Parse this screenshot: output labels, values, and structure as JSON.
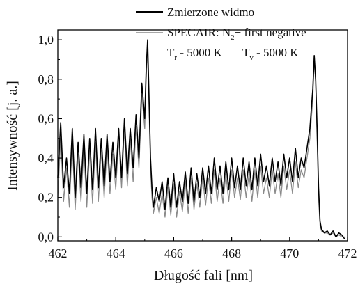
{
  "chart_data": {
    "type": "line",
    "xlabel": "Długość fali [nm]",
    "ylabel": "Intensywność [j. a.]",
    "xlim": [
      462,
      472
    ],
    "ylim": [
      -0.02,
      1.05
    ],
    "xticks": [
      "462",
      "464",
      "466",
      "468",
      "470",
      "472"
    ],
    "yticks": [
      "0,0",
      "0,2",
      "0,4",
      "0,6",
      "0,8",
      "1,0"
    ],
    "legend": {
      "position": "top-right",
      "entries": [
        {
          "label": "Zmierzone widmo"
        },
        {
          "label_prefix": "SPECAIR: N",
          "label_sub": "2",
          "label_suffix": "+ first negative"
        }
      ]
    },
    "annotation": {
      "tr_main": "T",
      "tr_sub": "r",
      "tr_value": " - 5000 K",
      "tv_main": "T",
      "tv_sub": "v",
      "tv_value": " - 5000 K"
    },
    "series": [
      {
        "name": "Zmierzone widmo",
        "color": "#000000",
        "x": [
          462.0,
          462.1,
          462.2,
          462.3,
          462.4,
          462.5,
          462.6,
          462.7,
          462.8,
          462.9,
          463.0,
          463.1,
          463.2,
          463.3,
          463.4,
          463.5,
          463.6,
          463.7,
          463.8,
          463.9,
          464.0,
          464.1,
          464.2,
          464.3,
          464.4,
          464.5,
          464.6,
          464.7,
          464.8,
          464.9,
          465.0,
          465.05,
          465.1,
          465.15,
          465.2,
          465.25,
          465.3,
          465.4,
          465.5,
          465.6,
          465.7,
          465.8,
          465.9,
          466.0,
          466.1,
          466.2,
          466.3,
          466.4,
          466.5,
          466.6,
          466.7,
          466.8,
          466.9,
          467.0,
          467.1,
          467.2,
          467.3,
          467.4,
          467.5,
          467.6,
          467.7,
          467.8,
          467.9,
          468.0,
          468.1,
          468.2,
          468.3,
          468.4,
          468.5,
          468.6,
          468.7,
          468.8,
          468.9,
          469.0,
          469.1,
          469.2,
          469.3,
          469.4,
          469.5,
          469.6,
          469.7,
          469.8,
          469.9,
          470.0,
          470.1,
          470.2,
          470.3,
          470.4,
          470.5,
          470.6,
          470.7,
          470.8,
          470.85,
          470.9,
          470.95,
          471.0,
          471.05,
          471.1,
          471.2,
          471.3,
          471.4,
          471.5,
          471.6,
          471.7,
          471.8,
          471.9
        ],
        "y": [
          0.3,
          0.58,
          0.25,
          0.4,
          0.22,
          0.55,
          0.2,
          0.48,
          0.25,
          0.52,
          0.22,
          0.5,
          0.24,
          0.55,
          0.25,
          0.5,
          0.26,
          0.52,
          0.28,
          0.48,
          0.3,
          0.55,
          0.3,
          0.6,
          0.32,
          0.55,
          0.35,
          0.62,
          0.4,
          0.78,
          0.6,
          0.85,
          1.0,
          0.7,
          0.4,
          0.25,
          0.15,
          0.25,
          0.18,
          0.28,
          0.14,
          0.3,
          0.15,
          0.32,
          0.15,
          0.28,
          0.18,
          0.33,
          0.17,
          0.35,
          0.18,
          0.32,
          0.2,
          0.35,
          0.22,
          0.36,
          0.22,
          0.4,
          0.24,
          0.36,
          0.22,
          0.38,
          0.24,
          0.4,
          0.25,
          0.36,
          0.24,
          0.4,
          0.26,
          0.38,
          0.24,
          0.4,
          0.26,
          0.42,
          0.28,
          0.36,
          0.26,
          0.4,
          0.28,
          0.38,
          0.26,
          0.42,
          0.3,
          0.4,
          0.28,
          0.45,
          0.3,
          0.4,
          0.35,
          0.45,
          0.55,
          0.75,
          0.92,
          0.8,
          0.55,
          0.25,
          0.08,
          0.04,
          0.02,
          0.03,
          0.01,
          0.03,
          0.0,
          0.02,
          0.01,
          -0.01
        ]
      },
      {
        "name_prefix": "SPECAIR: N",
        "name_sub": "2",
        "name_suffix": "+ first negative",
        "color": "#8a8a8a",
        "x": [
          462.0,
          462.1,
          462.2,
          462.3,
          462.4,
          462.5,
          462.6,
          462.7,
          462.8,
          462.9,
          463.0,
          463.1,
          463.2,
          463.3,
          463.4,
          463.5,
          463.6,
          463.7,
          463.8,
          463.9,
          464.0,
          464.1,
          464.2,
          464.3,
          464.4,
          464.5,
          464.6,
          464.7,
          464.8,
          464.9,
          465.0,
          465.05,
          465.1,
          465.15,
          465.2,
          465.25,
          465.3,
          465.4,
          465.5,
          465.6,
          465.7,
          465.8,
          465.9,
          466.0,
          466.1,
          466.2,
          466.3,
          466.4,
          466.5,
          466.6,
          466.7,
          466.8,
          466.9,
          467.0,
          467.1,
          467.2,
          467.3,
          467.4,
          467.5,
          467.6,
          467.7,
          467.8,
          467.9,
          468.0,
          468.1,
          468.2,
          468.3,
          468.4,
          468.5,
          468.6,
          468.7,
          468.8,
          468.9,
          469.0,
          469.1,
          469.2,
          469.3,
          469.4,
          469.5,
          469.6,
          469.7,
          469.8,
          469.9,
          470.0,
          470.1,
          470.2,
          470.3,
          470.4,
          470.5,
          470.6,
          470.7,
          470.8,
          470.85,
          470.9,
          470.95,
          471.0,
          471.05,
          471.1,
          471.2,
          471.3,
          471.4,
          471.5,
          471.6,
          471.7,
          471.8,
          471.9
        ],
        "y": [
          0.2,
          0.5,
          0.18,
          0.35,
          0.15,
          0.48,
          0.14,
          0.42,
          0.18,
          0.45,
          0.15,
          0.44,
          0.17,
          0.48,
          0.18,
          0.44,
          0.2,
          0.46,
          0.22,
          0.42,
          0.24,
          0.5,
          0.25,
          0.55,
          0.26,
          0.5,
          0.28,
          0.56,
          0.35,
          0.72,
          0.55,
          0.8,
          0.95,
          0.65,
          0.35,
          0.2,
          0.12,
          0.2,
          0.12,
          0.22,
          0.1,
          0.25,
          0.11,
          0.27,
          0.1,
          0.23,
          0.13,
          0.28,
          0.12,
          0.3,
          0.14,
          0.27,
          0.15,
          0.3,
          0.16,
          0.3,
          0.17,
          0.34,
          0.18,
          0.3,
          0.17,
          0.32,
          0.18,
          0.34,
          0.2,
          0.3,
          0.19,
          0.34,
          0.2,
          0.32,
          0.18,
          0.34,
          0.2,
          0.36,
          0.22,
          0.3,
          0.2,
          0.34,
          0.22,
          0.32,
          0.2,
          0.36,
          0.24,
          0.34,
          0.22,
          0.38,
          0.25,
          0.34,
          0.3,
          0.4,
          0.5,
          0.7,
          0.9,
          0.78,
          0.5,
          0.2,
          0.06,
          0.03,
          0.02,
          0.02,
          0.01,
          0.02,
          0.0,
          0.01,
          0.0,
          0.0
        ]
      }
    ]
  }
}
